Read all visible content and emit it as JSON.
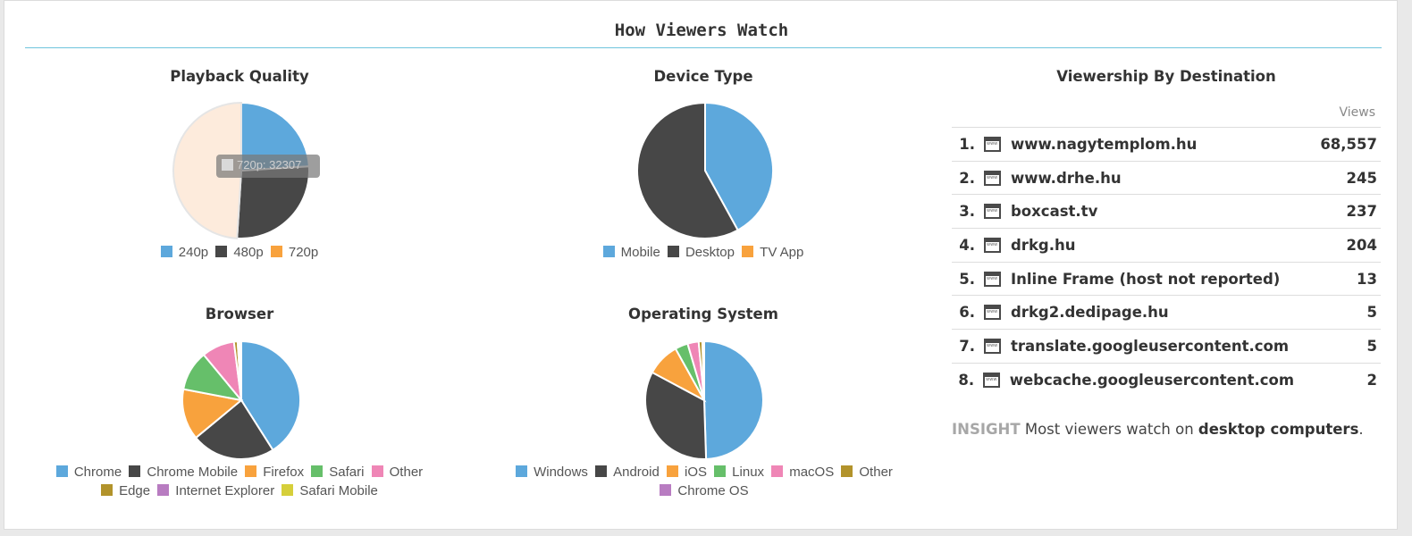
{
  "page": {
    "title": "How Viewers Watch"
  },
  "colors": {
    "blue": "#5da8dc",
    "dark": "#474747",
    "orange": "#f8a23d",
    "green": "#66bf6a",
    "pink": "#ef86b6",
    "olive": "#b2932b",
    "purple": "#b87cc1",
    "yellow": "#d6cf3a",
    "hidden_slice": "#fdebdc",
    "rule": "#6fc4dd"
  },
  "chart_data": [
    {
      "type": "pie",
      "title": "Playback Quality",
      "series": [
        {
          "name": "240p",
          "value": 24,
          "color": "#5da8dc"
        },
        {
          "name": "480p",
          "value": 27,
          "color": "#474747"
        },
        {
          "name": "720p",
          "value": 49,
          "color": "#fdebdc",
          "hidden": true
        }
      ],
      "tooltip": "720p: 32307"
    },
    {
      "type": "pie",
      "title": "Device Type",
      "series": [
        {
          "name": "Mobile",
          "value": 42,
          "color": "#5da8dc"
        },
        {
          "name": "Desktop",
          "value": 58,
          "color": "#474747"
        },
        {
          "name": "TV App",
          "value": 0,
          "color": "#f8a23d"
        }
      ]
    },
    {
      "type": "pie",
      "title": "Browser",
      "series": [
        {
          "name": "Chrome",
          "value": 41,
          "color": "#5da8dc"
        },
        {
          "name": "Chrome Mobile",
          "value": 23,
          "color": "#474747"
        },
        {
          "name": "Firefox",
          "value": 14,
          "color": "#f8a23d"
        },
        {
          "name": "Safari",
          "value": 11,
          "color": "#66bf6a"
        },
        {
          "name": "Other",
          "value": 9,
          "color": "#ef86b6"
        },
        {
          "name": "Edge",
          "value": 1,
          "color": "#b2932b"
        },
        {
          "name": "Internet Explorer",
          "value": 0.5,
          "color": "#b87cc1"
        },
        {
          "name": "Safari Mobile",
          "value": 0.5,
          "color": "#d6cf3a"
        }
      ]
    },
    {
      "type": "pie",
      "title": "Operating System",
      "series": [
        {
          "name": "Windows",
          "value": 49,
          "color": "#5da8dc"
        },
        {
          "name": "Android",
          "value": 33,
          "color": "#474747"
        },
        {
          "name": "iOS",
          "value": 9,
          "color": "#f8a23d"
        },
        {
          "name": "Linux",
          "value": 3.5,
          "color": "#66bf6a"
        },
        {
          "name": "macOS",
          "value": 3,
          "color": "#ef86b6"
        },
        {
          "name": "Other",
          "value": 1,
          "color": "#b2932b"
        },
        {
          "name": "Chrome OS",
          "value": 0.5,
          "color": "#b87cc1"
        }
      ]
    }
  ],
  "destinations": {
    "title": "Viewership By Destination",
    "views_header": "Views",
    "rows": [
      {
        "rank": "1.",
        "host": "www.nagytemplom.hu",
        "views": "68,557"
      },
      {
        "rank": "2.",
        "host": "www.drhe.hu",
        "views": "245"
      },
      {
        "rank": "3.",
        "host": "boxcast.tv",
        "views": "237"
      },
      {
        "rank": "4.",
        "host": "drkg.hu",
        "views": "204"
      },
      {
        "rank": "5.",
        "host": "Inline Frame (host not reported)",
        "views": "13"
      },
      {
        "rank": "6.",
        "host": "drkg2.dedipage.hu",
        "views": "5"
      },
      {
        "rank": "7.",
        "host": "translate.googleusercontent.com",
        "views": "5"
      },
      {
        "rank": "8.",
        "host": "webcache.googleusercontent.com",
        "views": "2"
      }
    ]
  },
  "insight": {
    "label": "INSIGHT",
    "text_before": " Most viewers watch on ",
    "bold": "desktop computers",
    "text_after": "."
  }
}
